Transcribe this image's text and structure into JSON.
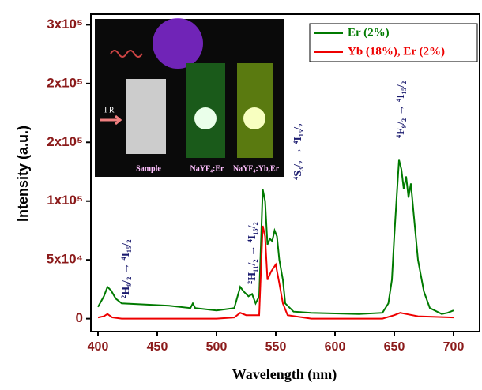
{
  "chart_data": {
    "type": "line",
    "x_label": "Wavelength (nm)",
    "y_label": "Intensity (a.u.)",
    "xlim": [
      394,
      722
    ],
    "xticks": [
      400,
      450,
      500,
      550,
      600,
      650,
      700
    ],
    "ylim": [
      -11000,
      259000
    ],
    "yticks": [
      0,
      {
        "value": 50000,
        "label": "5x10⁴"
      },
      {
        "value": 100000,
        "label": "1x10⁵"
      },
      {
        "value": 150000,
        "label": "2x10⁵"
      },
      {
        "value": 200000,
        "label": "2x10⁵"
      },
      {
        "value": 250000,
        "label": "3x10⁵"
      }
    ],
    "legend": "upper right",
    "series": [
      {
        "name": "Er (2%)",
        "color": "#007a00",
        "x": [
          400,
          405,
          408,
          411,
          415,
          420,
          440,
          460,
          478,
          480,
          482,
          500,
          515,
          520,
          523,
          527,
          530,
          533,
          536,
          539,
          541,
          543,
          545,
          547,
          549,
          551,
          553,
          556,
          558,
          565,
          580,
          620,
          640,
          645,
          648,
          650,
          652,
          654,
          656,
          658,
          660,
          662,
          664,
          666,
          670,
          675,
          680,
          690,
          695,
          700
        ],
        "values": [
          10000,
          19000,
          27000,
          24000,
          17000,
          13000,
          12000,
          11000,
          9000,
          13000,
          9000,
          7000,
          9000,
          27000,
          23000,
          19000,
          21000,
          13000,
          19000,
          110000,
          100000,
          63000,
          68000,
          66000,
          75000,
          70000,
          50000,
          33000,
          13000,
          6000,
          5000,
          4000,
          5000,
          13000,
          33000,
          70000,
          103000,
          135000,
          127000,
          110000,
          121000,
          103000,
          115000,
          93000,
          50000,
          23000,
          9000,
          4000,
          5000,
          7000
        ]
      },
      {
        "name": "Yb (18%), Er (2%)",
        "color": "#ee0000",
        "x": [
          400,
          405,
          408,
          412,
          420,
          500,
          515,
          520,
          525,
          530,
          536,
          539,
          541,
          543,
          546,
          548,
          550,
          553,
          556,
          560,
          580,
          640,
          650,
          655,
          660,
          670,
          700
        ],
        "values": [
          1000,
          2000,
          4000,
          1000,
          0,
          0,
          1000,
          5000,
          3000,
          3000,
          3000,
          79000,
          70000,
          33000,
          40000,
          43000,
          46000,
          30000,
          13000,
          3000,
          0,
          0,
          3000,
          5000,
          4000,
          2000,
          1000
        ]
      }
    ],
    "annotations": [
      "²H₉/₂ → ⁴I₁₅/₂",
      "²H₁₁/₂ → ⁴I₁₅/₂",
      "⁴S₃/₂ → ⁴I₁₅/₂",
      "⁴F₉/₂ → ⁴I₁₅/₂"
    ],
    "inset": {
      "labels": [
        "I R",
        "Sample",
        "NaYF₄:Er",
        "NaYF₄:Yb,Er"
      ]
    }
  }
}
